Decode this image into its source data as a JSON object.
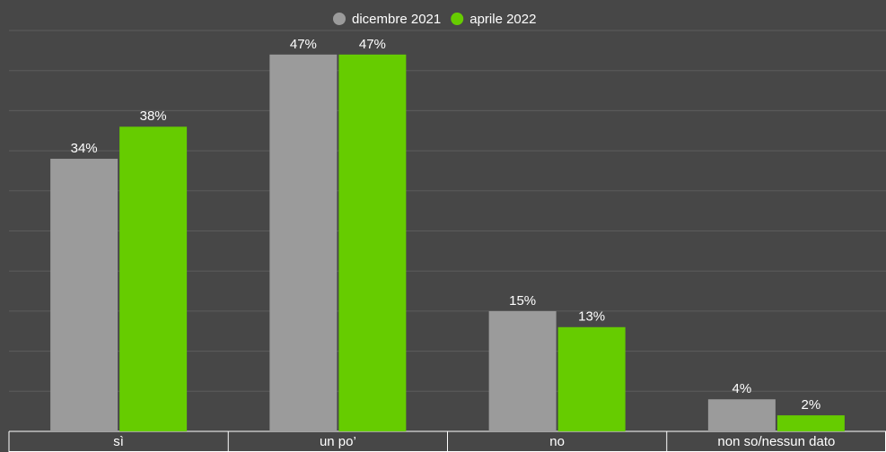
{
  "chart_data": {
    "type": "bar",
    "categories": [
      "sì",
      "un po’",
      "no",
      "non so/nessun dato"
    ],
    "series": [
      {
        "name": "dicembre 2021",
        "color": "#9b9b9b",
        "values": [
          34,
          47,
          15,
          4
        ],
        "value_labels": [
          "34%",
          "47%",
          "15%",
          "4%"
        ]
      },
      {
        "name": "aprile 2022",
        "color": "#66cc00",
        "values": [
          38,
          47,
          13,
          2
        ],
        "value_labels": [
          "38%",
          "47%",
          "13%",
          "2%"
        ]
      }
    ],
    "ylim": [
      0,
      50
    ],
    "yticks": [
      0,
      5,
      10,
      15,
      20,
      25,
      30,
      35,
      40,
      45,
      50
    ],
    "grid": true,
    "legend": "top"
  }
}
